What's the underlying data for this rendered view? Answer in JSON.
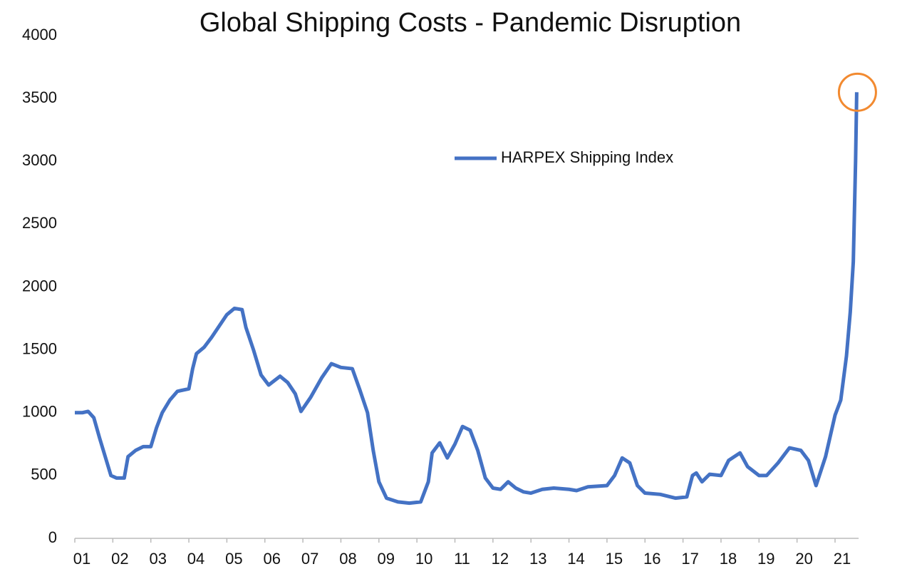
{
  "chart_data": {
    "type": "line",
    "title": "Global Shipping Costs - Pandemic Disruption",
    "x": [
      1.0,
      1.2,
      1.35,
      1.5,
      1.65,
      1.8,
      1.95,
      2.1,
      2.3,
      2.4,
      2.6,
      2.8,
      3.0,
      3.15,
      3.3,
      3.5,
      3.7,
      4.0,
      4.1,
      4.2,
      4.4,
      4.6,
      4.8,
      5.0,
      5.2,
      5.4,
      5.5,
      5.7,
      5.9,
      6.1,
      6.4,
      6.6,
      6.8,
      6.95,
      7.2,
      7.5,
      7.75,
      8.0,
      8.3,
      8.5,
      8.7,
      8.85,
      9.0,
      9.2,
      9.5,
      9.8,
      10.1,
      10.3,
      10.4,
      10.6,
      10.8,
      11.0,
      11.2,
      11.4,
      11.6,
      11.8,
      12.0,
      12.2,
      12.4,
      12.6,
      12.8,
      13.0,
      13.3,
      13.6,
      14.0,
      14.2,
      14.5,
      15.0,
      15.2,
      15.4,
      15.6,
      15.8,
      16.0,
      16.4,
      16.8,
      17.1,
      17.25,
      17.35,
      17.5,
      17.7,
      18.0,
      18.2,
      18.5,
      18.7,
      19.0,
      19.2,
      19.5,
      19.8,
      20.1,
      20.3,
      20.5,
      20.75,
      21.0,
      21.15,
      21.3,
      21.4,
      21.48,
      21.54,
      21.57
    ],
    "series": [
      {
        "name": "HARPEX Shipping Index",
        "color": "#4472c4",
        "values": [
          1000,
          1000,
          1010,
          960,
          800,
          650,
          500,
          480,
          480,
          650,
          700,
          730,
          730,
          880,
          1000,
          1100,
          1170,
          1190,
          1350,
          1470,
          1520,
          1600,
          1690,
          1780,
          1830,
          1820,
          1680,
          1500,
          1300,
          1220,
          1290,
          1240,
          1150,
          1010,
          1120,
          1280,
          1390,
          1360,
          1350,
          1180,
          1000,
          700,
          450,
          320,
          290,
          280,
          290,
          450,
          680,
          760,
          640,
          750,
          890,
          860,
          700,
          480,
          400,
          390,
          450,
          400,
          370,
          360,
          390,
          400,
          390,
          380,
          410,
          420,
          500,
          640,
          600,
          420,
          360,
          350,
          320,
          330,
          500,
          520,
          450,
          510,
          500,
          620,
          680,
          570,
          500,
          500,
          600,
          720,
          700,
          620,
          420,
          650,
          980,
          1100,
          1450,
          1800,
          2200,
          3000,
          3550
        ]
      }
    ],
    "xlim": [
      1,
      21.62
    ],
    "xticks": [
      {
        "value": 1,
        "label": "01"
      },
      {
        "value": 2,
        "label": "02"
      },
      {
        "value": 3,
        "label": "03"
      },
      {
        "value": 4,
        "label": "04"
      },
      {
        "value": 5,
        "label": "05"
      },
      {
        "value": 6,
        "label": "06"
      },
      {
        "value": 7,
        "label": "07"
      },
      {
        "value": 8,
        "label": "08"
      },
      {
        "value": 9,
        "label": "09"
      },
      10,
      11,
      12,
      13,
      14,
      15,
      16,
      17,
      18,
      19,
      20,
      21
    ],
    "ylim": [
      0,
      4000
    ],
    "yticks": [
      0,
      500,
      1000,
      1500,
      2000,
      2500,
      3000,
      3500,
      4000
    ],
    "grid": false,
    "legend": "upper center",
    "highlight_color": "#f28a30"
  }
}
